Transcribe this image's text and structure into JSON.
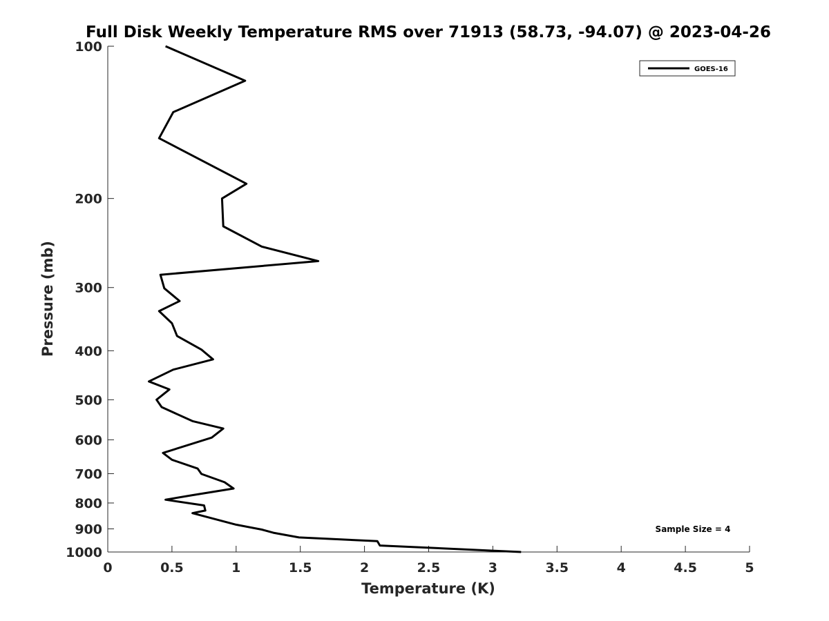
{
  "chart_data": {
    "type": "line",
    "title": "Full Disk Weekly Temperature RMS over 71913 (58.73, -94.07) @ 2023-04-26",
    "xlabel": "Temperature (K)",
    "ylabel": "Pressure (mb)",
    "xlim": [
      0,
      5
    ],
    "ylim": [
      1000,
      100
    ],
    "y_scale": "log",
    "y_reversed": true,
    "grid": false,
    "x_ticks": [
      0,
      0.5,
      1,
      1.5,
      2,
      2.5,
      3,
      3.5,
      4,
      4.5,
      5
    ],
    "x_tick_labels": [
      "0",
      "0.5",
      "1",
      "1.5",
      "2",
      "2.5",
      "3",
      "3.5",
      "4",
      "4.5",
      "5"
    ],
    "y_ticks": [
      100,
      200,
      300,
      400,
      500,
      600,
      700,
      800,
      900,
      1000
    ],
    "y_tick_labels": [
      "100",
      "200",
      "300",
      "400",
      "500",
      "600",
      "700",
      "800",
      "900",
      "1000"
    ],
    "legend_position": "top-right",
    "annotation": "Sample Size = 4",
    "series": [
      {
        "name": "GOES-16",
        "color": "#000000",
        "points": [
          [
            0.45,
            100
          ],
          [
            1.07,
            117
          ],
          [
            0.51,
            135
          ],
          [
            0.4,
            152
          ],
          [
            1.08,
            187
          ],
          [
            0.89,
            200
          ],
          [
            0.9,
            227
          ],
          [
            1.2,
            249
          ],
          [
            1.64,
            266
          ],
          [
            0.41,
            283
          ],
          [
            0.44,
            301
          ],
          [
            0.56,
            319
          ],
          [
            0.4,
            334
          ],
          [
            0.5,
            353
          ],
          [
            0.54,
            374
          ],
          [
            0.73,
            398
          ],
          [
            0.82,
            416
          ],
          [
            0.51,
            436
          ],
          [
            0.32,
            460
          ],
          [
            0.48,
            477
          ],
          [
            0.38,
            500
          ],
          [
            0.42,
            517
          ],
          [
            0.66,
            551
          ],
          [
            0.9,
            570
          ],
          [
            0.81,
            594
          ],
          [
            0.43,
            637
          ],
          [
            0.5,
            657
          ],
          [
            0.7,
            684
          ],
          [
            0.73,
            701
          ],
          [
            0.91,
            728
          ],
          [
            0.98,
            749
          ],
          [
            0.66,
            772
          ],
          [
            0.45,
            788
          ],
          [
            0.75,
            809
          ],
          [
            0.76,
            828
          ],
          [
            0.66,
            838
          ],
          [
            1.0,
            883
          ],
          [
            1.2,
            903
          ],
          [
            1.29,
            916
          ],
          [
            1.49,
            936
          ],
          [
            2.1,
            952
          ],
          [
            2.12,
            971
          ],
          [
            3.22,
            1000
          ]
        ]
      }
    ]
  }
}
